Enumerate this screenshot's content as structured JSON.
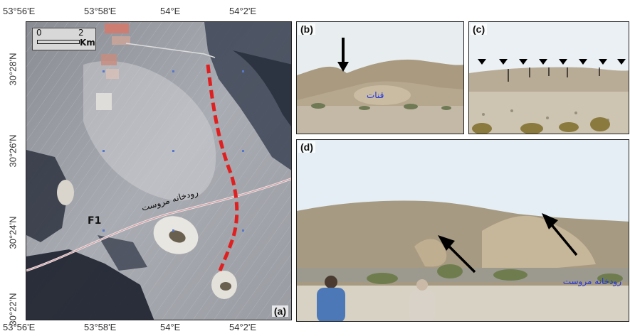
{
  "map": {
    "label": "(a)",
    "scale_start": "0",
    "scale_end": "2",
    "scale_unit": "Km",
    "fault_label": "F1",
    "river_label": "رودخانه مروست",
    "top_ticks": [
      "53°56'E",
      "53°58'E",
      "54°E",
      "54°2'E"
    ],
    "bottom_ticks": [
      "53°56'E",
      "53°58'E",
      "54°E",
      "54°2'E"
    ],
    "left_ticks": [
      "30°28'N",
      "30°26'N",
      "30°24'N",
      "30°22'N"
    ]
  },
  "panel_b": {
    "label": "(b)",
    "annotation": "قنات"
  },
  "panel_c": {
    "label": "(c)"
  },
  "panel_d": {
    "label": "(d)",
    "annotation": "رودخانه مروست"
  },
  "colors": {
    "fault_line": "#e02020",
    "annotation_text": "#2233dd",
    "frame": "#222222"
  }
}
